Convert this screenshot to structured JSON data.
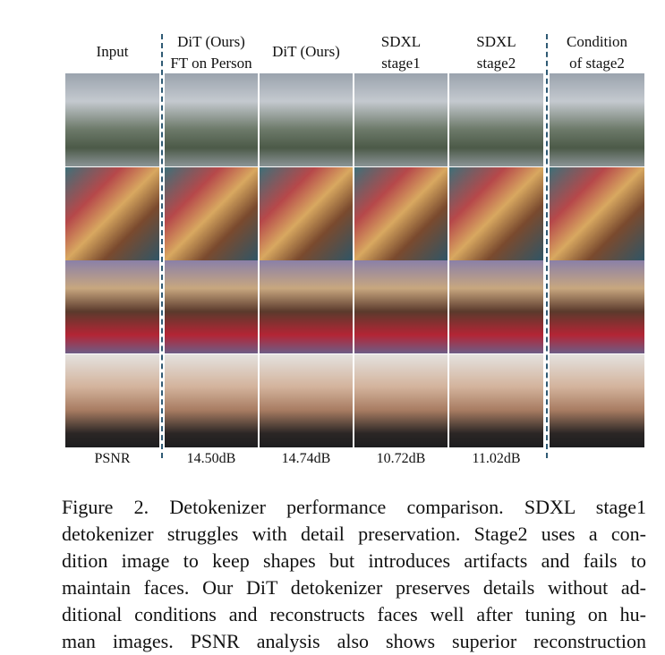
{
  "figure": {
    "columns": [
      {
        "header": [
          "Input"
        ],
        "psnr": "PSNR"
      },
      {
        "header": [
          "DiT (Ours)",
          "FT on Person"
        ],
        "psnr": "14.50dB"
      },
      {
        "header": [
          "DiT (Ours)"
        ],
        "psnr": "14.74dB"
      },
      {
        "header": [
          "SDXL",
          "stage1"
        ],
        "psnr": "10.72dB"
      },
      {
        "header": [
          "SDXL",
          "stage2"
        ],
        "psnr": "11.02dB"
      },
      {
        "header": [
          "Condition",
          "of stage2"
        ]
      }
    ],
    "caption": {
      "lines": [
        "Figure 2.  Detokenizer performance comparison.  SDXL stage1",
        "detokenizer struggles with detail preservation. Stage2 uses a con-",
        "dition image to keep shapes but introduces artifacts and fails to",
        "maintain faces. Our DiT detokenizer preserves details without ad-",
        "ditional conditions and reconstructs faces well after tuning on hu-",
        "man images.  PSNR analysis also shows superior reconstruction"
      ]
    }
  }
}
